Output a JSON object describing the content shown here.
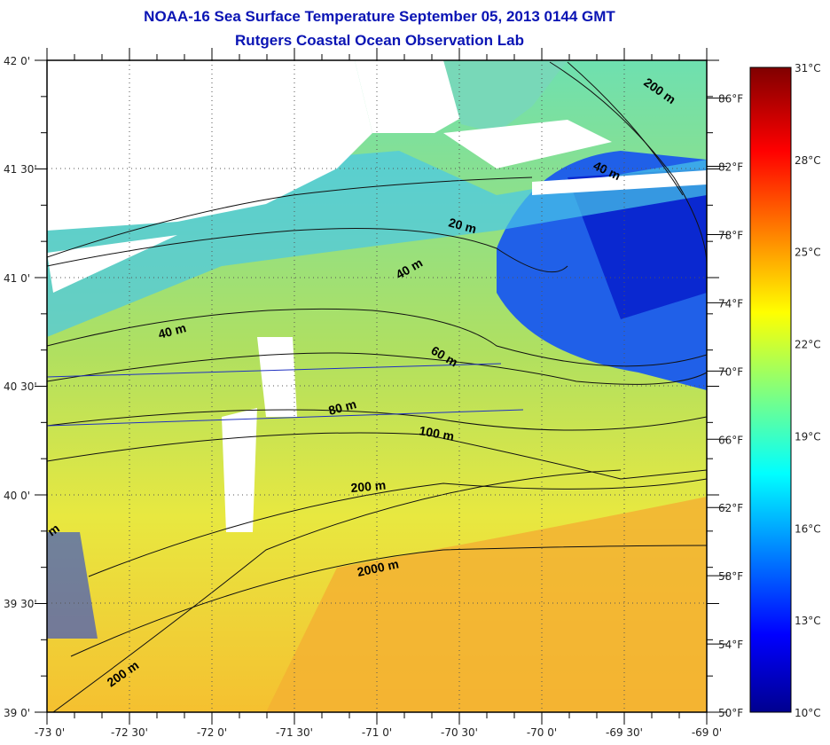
{
  "header": {
    "title": "NOAA-16 Sea Surface Temperature September 05, 2013 0144 GMT",
    "subtitle": "Rutgers Coastal Ocean Observation Lab"
  },
  "map": {
    "lat_labels": [
      "42 0'",
      "41 30'",
      "41 0'",
      "40 30'",
      "40 0'",
      "39 30'",
      "39 0'"
    ],
    "lon_labels": [
      "-73 0'",
      "-72 30'",
      "-72 0'",
      "-71 30'",
      "-71 0'",
      "-70 30'",
      "-70 0'",
      "-69 30'",
      "-69 0'"
    ],
    "contour_labels": [
      "200 m",
      "40 m",
      "20 m",
      "40 m",
      "40 m",
      "60 m",
      "80 m",
      "100 m",
      "200 m",
      "2000 m",
      "200 m",
      "m"
    ]
  },
  "colorbar": {
    "celsius_labels": [
      "31°C",
      "28°C",
      "25°C",
      "22°C",
      "19°C",
      "16°C",
      "13°C",
      "10°C"
    ],
    "fahrenheit_labels": [
      "86°F",
      "82°F",
      "78°F",
      "74°F",
      "70°F",
      "66°F",
      "62°F",
      "58°F",
      "54°F",
      "50°F"
    ],
    "range_c": [
      10,
      31
    ]
  }
}
